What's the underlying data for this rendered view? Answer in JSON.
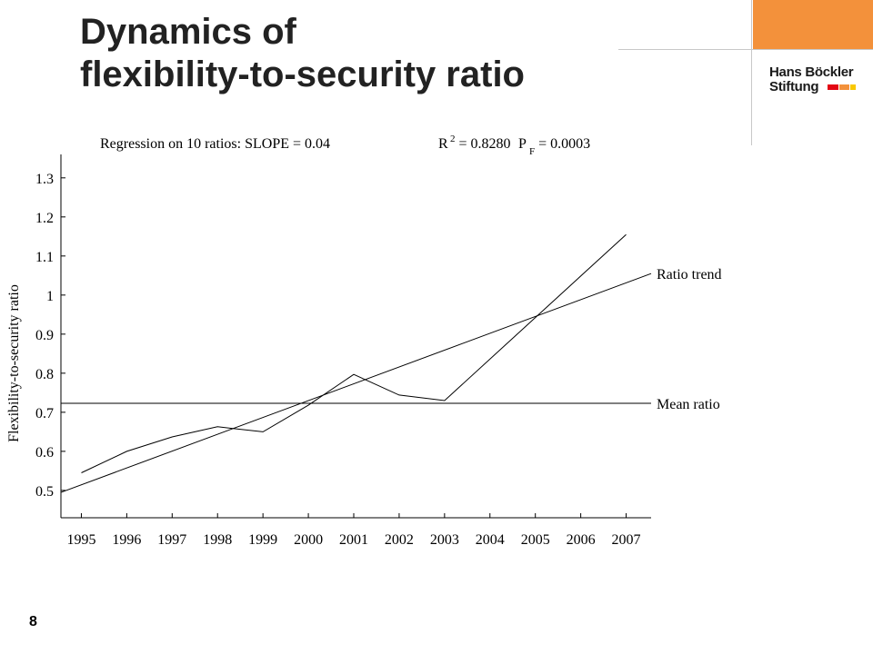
{
  "slide": {
    "title_line1": "Dynamics of",
    "title_line2": "flexibility-to-security ratio",
    "page_number": "8"
  },
  "logo": {
    "line1": "Hans Böckler",
    "line2": "Stiftung",
    "accent_colors": [
      "#e30613",
      "#f3913b",
      "#f9c800"
    ]
  },
  "colors": {
    "accent_orange": "#f3913b",
    "line": "#000000"
  },
  "chart_data": {
    "type": "line",
    "regression": {
      "prefix": "Regression on 10  ratios: SLOPE = 0.04",
      "r2_base": "R",
      "r2_sup": "2",
      "r2_value": " = 0.8280",
      "pf_base": "P",
      "pf_sub": "F",
      "pf_value": " = 0.0003"
    },
    "ylabel": "Flexibility-to-security ratio",
    "xlabel": "",
    "x_ticks": [
      "1995",
      "1996",
      "1997",
      "1998",
      "1999",
      "2000",
      "2001",
      "2002",
      "2003",
      "2004",
      "2005",
      "2006",
      "2007"
    ],
    "y_ticks": [
      "0.5",
      "0.6",
      "0.7",
      "0.8",
      "0.9",
      "1",
      "1.1",
      "1.2",
      "1.3"
    ],
    "xlim": [
      1994.55,
      2007.55
    ],
    "ylim": [
      0.43,
      1.36
    ],
    "series": [
      {
        "x": [
          1995,
          1996,
          1997,
          1998,
          1999,
          2000,
          2001,
          2002,
          2003,
          2007
        ],
        "y": [
          0.545,
          0.6,
          0.637,
          0.663,
          0.65,
          0.718,
          0.797,
          0.744,
          0.73,
          1.155
        ]
      }
    ],
    "trend": {
      "label": "Ratio trend",
      "x": [
        1994.55,
        2007.55
      ],
      "y": [
        0.495,
        1.055
      ]
    },
    "mean": {
      "label": "Mean ratio",
      "y": 0.723
    }
  }
}
